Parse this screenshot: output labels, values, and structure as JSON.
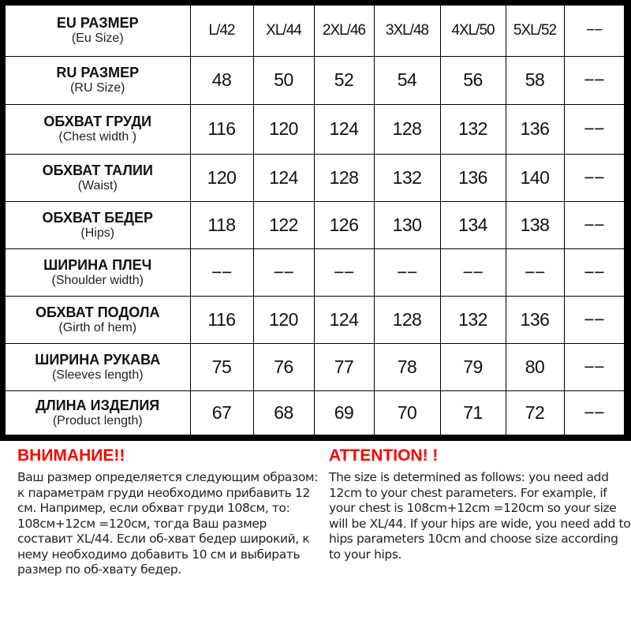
{
  "table": {
    "rows": [
      {
        "label_ru": "EU РАЗМЕР",
        "label_en": "(Eu Size)",
        "values": [
          "L/42",
          "XL/44",
          "2XL/46",
          "3XL/48",
          "4XL/50",
          "5XL/52",
          "−−"
        ]
      },
      {
        "label_ru": "RU РАЗМЕР",
        "label_en": "(RU Size)",
        "values": [
          "48",
          "50",
          "52",
          "54",
          "56",
          "58",
          "−−"
        ]
      },
      {
        "label_ru": "ОБХВАТ ГРУДИ",
        "label_en": "(Chest width )",
        "values": [
          "116",
          "120",
          "124",
          "128",
          "132",
          "136",
          "−−"
        ]
      },
      {
        "label_ru": "ОБХВАТ ТАЛИИ",
        "label_en": "(Waist)",
        "values": [
          "120",
          "124",
          "128",
          "132",
          "136",
          "140",
          "−−"
        ]
      },
      {
        "label_ru": "ОБХВАТ БЕДЕР",
        "label_en": "(Hips)",
        "values": [
          "118",
          "122",
          "126",
          "130",
          "134",
          "138",
          "−−"
        ]
      },
      {
        "label_ru": "ШИРИНА ПЛЕЧ",
        "label_en": "(Shoulder width)",
        "values": [
          "−−",
          "−−",
          "−−",
          "−−",
          "−−",
          "−−",
          "−−"
        ]
      },
      {
        "label_ru": "ОБХВАТ ПОДОЛА",
        "label_en": "(Girth of hem)",
        "values": [
          "116",
          "120",
          "124",
          "128",
          "132",
          "136",
          "−−"
        ]
      },
      {
        "label_ru": "ШИРИНА РУКАВА",
        "label_en": "(Sleeves length)",
        "values": [
          "75",
          "76",
          "77",
          "78",
          "79",
          "80",
          "−−"
        ]
      },
      {
        "label_ru": "ДЛИНА ИЗДЕЛИЯ",
        "label_en": "(Product length)",
        "values": [
          "67",
          "68",
          "69",
          "70",
          "71",
          "72",
          "−−"
        ]
      }
    ]
  },
  "notes": {
    "ru": {
      "title": "ВНИМАНИЕ!!",
      "text": "Ваш размер определяется следующим образом: к параметрам груди необходимо прибавить 12 см. Например, если обхват груди  108см, то: 108см+12см =120см, тогда Ваш размер составит XL/44. Если об-хват бедер широкий, к нему необходимо добавить 10 см и выбирать размер по об-хвату бедер."
    },
    "en": {
      "title": "ATTENTION! !",
      "text": "The size is determined as follows: you need add 12cm to your chest parameters. For example, if your chest is 108cm+12cm =120cm so your size will be XL/44. If your hips are wide, you need add to hips parameters 10cm and choose size according to your hips."
    }
  },
  "colors": {
    "attention": "#ff0000",
    "border": "#000000"
  }
}
